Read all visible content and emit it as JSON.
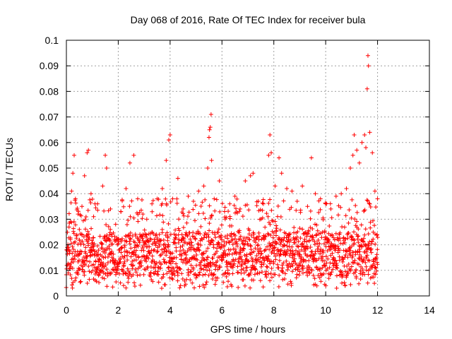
{
  "chart_data": {
    "type": "scatter",
    "title": "Day 068 of 2016, Rate Of TEC Index for receiver bula",
    "xlabel": "GPS time / hours",
    "ylabel": "ROTI / TECUs",
    "xlim": [
      0,
      14
    ],
    "ylim": [
      0,
      0.1
    ],
    "xticks": [
      "0",
      "2",
      "4",
      "6",
      "8",
      "10",
      "12",
      "14"
    ],
    "yticks": [
      "0",
      "0.01",
      "0.02",
      "0.03",
      "0.04",
      "0.05",
      "0.06",
      "0.07",
      "0.08",
      "0.09",
      "0.1"
    ],
    "grid": true,
    "marker": "plus",
    "series_color": "#ff0000",
    "series": [
      {
        "points": [
          [
            0.05,
            0.012
          ],
          [
            0.1,
            0.018
          ],
          [
            0.15,
            0.029
          ],
          [
            0.2,
            0.041
          ],
          [
            0.25,
            0.048
          ],
          [
            0.3,
            0.055
          ],
          [
            0.35,
            0.038
          ],
          [
            0.45,
            0.032
          ],
          [
            0.5,
            0.026
          ],
          [
            0.6,
            0.035
          ],
          [
            0.7,
            0.047
          ],
          [
            0.8,
            0.056
          ],
          [
            0.85,
            0.057
          ],
          [
            0.95,
            0.04
          ],
          [
            1.05,
            0.031
          ],
          [
            1.2,
            0.036
          ],
          [
            1.4,
            0.043
          ],
          [
            1.5,
            0.055
          ],
          [
            1.55,
            0.05
          ],
          [
            1.7,
            0.034
          ],
          [
            1.9,
            0.028
          ],
          [
            2.1,
            0.033
          ],
          [
            2.3,
            0.042
          ],
          [
            2.45,
            0.052
          ],
          [
            2.6,
            0.055
          ],
          [
            2.75,
            0.038
          ],
          [
            2.95,
            0.032
          ],
          [
            3.1,
            0.03
          ],
          [
            3.3,
            0.036
          ],
          [
            3.5,
            0.038
          ],
          [
            3.7,
            0.042
          ],
          [
            3.85,
            0.053
          ],
          [
            3.95,
            0.061
          ],
          [
            4.0,
            0.063
          ],
          [
            4.1,
            0.038
          ],
          [
            4.3,
            0.046
          ],
          [
            4.5,
            0.034
          ],
          [
            4.7,
            0.039
          ],
          [
            4.9,
            0.037
          ],
          [
            5.1,
            0.041
          ],
          [
            5.3,
            0.043
          ],
          [
            5.45,
            0.05
          ],
          [
            5.5,
            0.062
          ],
          [
            5.52,
            0.065
          ],
          [
            5.55,
            0.066
          ],
          [
            5.58,
            0.071
          ],
          [
            5.6,
            0.053
          ],
          [
            5.7,
            0.038
          ],
          [
            5.9,
            0.045
          ],
          [
            6.1,
            0.033
          ],
          [
            6.3,
            0.036
          ],
          [
            6.5,
            0.039
          ],
          [
            6.7,
            0.034
          ],
          [
            6.9,
            0.045
          ],
          [
            7.1,
            0.047
          ],
          [
            7.2,
            0.048
          ],
          [
            7.4,
            0.037
          ],
          [
            7.6,
            0.036
          ],
          [
            7.8,
            0.055
          ],
          [
            7.85,
            0.063
          ],
          [
            7.9,
            0.056
          ],
          [
            8.05,
            0.043
          ],
          [
            8.2,
            0.054
          ],
          [
            8.3,
            0.048
          ],
          [
            8.5,
            0.042
          ],
          [
            8.7,
            0.041
          ],
          [
            8.9,
            0.037
          ],
          [
            9.1,
            0.043
          ],
          [
            9.3,
            0.035
          ],
          [
            9.45,
            0.054
          ],
          [
            9.6,
            0.04
          ],
          [
            9.8,
            0.038
          ],
          [
            10.0,
            0.036
          ],
          [
            10.2,
            0.034
          ],
          [
            10.4,
            0.039
          ],
          [
            10.6,
            0.04
          ],
          [
            10.8,
            0.042
          ],
          [
            10.95,
            0.05
          ],
          [
            11.05,
            0.055
          ],
          [
            11.1,
            0.063
          ],
          [
            11.2,
            0.057
          ],
          [
            11.3,
            0.052
          ],
          [
            11.4,
            0.06
          ],
          [
            11.5,
            0.063
          ],
          [
            11.55,
            0.058
          ],
          [
            11.6,
            0.081
          ],
          [
            11.63,
            0.094
          ],
          [
            11.65,
            0.09
          ],
          [
            11.7,
            0.064
          ],
          [
            11.8,
            0.056
          ],
          [
            11.9,
            0.041
          ],
          [
            12.0,
            0.038
          ]
        ],
        "band": {
          "x_start": 0.0,
          "x_end": 12.0,
          "step": 0.02,
          "y_min": 0.003,
          "y_max": 0.038,
          "typical_low": 0.008,
          "typical_high": 0.025
        }
      }
    ]
  }
}
